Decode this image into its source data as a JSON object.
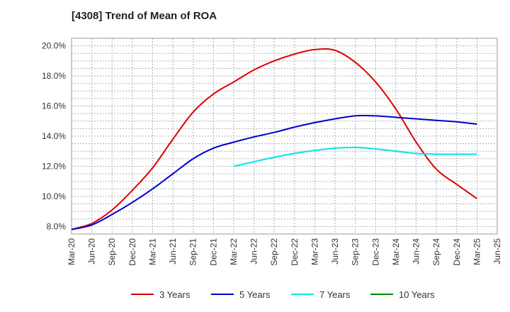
{
  "chart_data": {
    "type": "line",
    "title": "[4308]  Trend of Mean of ROA",
    "xlabel": "",
    "ylabel": "",
    "x_ticks": [
      "Mar-20",
      "Jun-20",
      "Sep-20",
      "Dec-20",
      "Mar-21",
      "Jun-21",
      "Sep-21",
      "Dec-21",
      "Mar-22",
      "Jun-22",
      "Sep-22",
      "Dec-22",
      "Mar-23",
      "Jun-23",
      "Sep-23",
      "Dec-23",
      "Mar-24",
      "Jun-24",
      "Sep-24",
      "Dec-24",
      "Mar-25",
      "Jun-25"
    ],
    "y_ticks": [
      "8.0%",
      "10.0%",
      "12.0%",
      "14.0%",
      "16.0%",
      "18.0%",
      "20.0%"
    ],
    "ylim": [
      7.5,
      20.5
    ],
    "grid": true,
    "legend_position": "bottom",
    "series": [
      {
        "name": "3 Years",
        "color": "#dd0000",
        "start_index": 0,
        "values": [
          7.8,
          8.2,
          9.1,
          10.4,
          11.9,
          13.8,
          15.6,
          16.8,
          17.6,
          18.4,
          19.0,
          19.45,
          19.75,
          19.7,
          18.9,
          17.6,
          15.8,
          13.6,
          11.8,
          10.8,
          9.85
        ]
      },
      {
        "name": "5 Years",
        "color": "#0000cc",
        "start_index": 0,
        "values": [
          7.8,
          8.1,
          8.8,
          9.6,
          10.5,
          11.5,
          12.5,
          13.2,
          13.6,
          13.95,
          14.25,
          14.6,
          14.9,
          15.15,
          15.35,
          15.35,
          15.25,
          15.15,
          15.05,
          14.95,
          14.8
        ]
      },
      {
        "name": "7 Years",
        "color": "#00e5e5",
        "start_index": 8,
        "values": [
          12.0,
          12.3,
          12.6,
          12.85,
          13.05,
          13.2,
          13.25,
          13.15,
          13.0,
          12.85,
          12.8,
          12.8,
          12.8
        ]
      },
      {
        "name": "10 Years",
        "color": "#008800",
        "start_index": 0,
        "values": []
      }
    ]
  }
}
